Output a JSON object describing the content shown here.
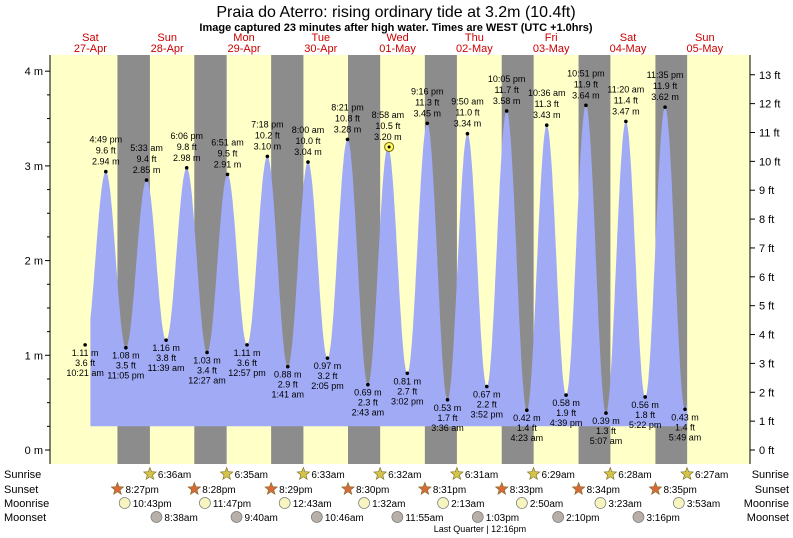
{
  "page": {
    "title": "Praia do Aterro: rising  ordinary tide at 3.2m (10.4ft)",
    "subtitle": "Image captured 23 minutes after high water. Times are WEST (UTC +1.0hrs)"
  },
  "chart_data": {
    "type": "area",
    "title": "Praia do Aterro: rising  ordinary tide at 3.2m (10.4ft)",
    "subtitle": "Image captured 23 minutes after high water. Times are WEST (UTC +1.0hrs)",
    "x_unit": "days from Sat 27-Apr 00:00 (WEST)",
    "ylim_m": [
      0,
      4.2
    ],
    "ylim_ft": [
      0,
      13.78
    ],
    "y_ticks_m": [
      "0 m",
      "1 m",
      "2 m",
      "3 m",
      "4 m"
    ],
    "y_ticks_ft": [
      "0 ft",
      "1 ft",
      "2 ft",
      "3 ft",
      "4 ft",
      "5 ft",
      "6 ft",
      "7 ft",
      "8 ft",
      "9 ft",
      "10 ft",
      "11 ft",
      "12 ft",
      "13 ft"
    ],
    "days": [
      {
        "weekday": "Sat",
        "date": "27-Apr"
      },
      {
        "weekday": "Sun",
        "date": "28-Apr"
      },
      {
        "weekday": "Mon",
        "date": "29-Apr"
      },
      {
        "weekday": "Tue",
        "date": "30-Apr"
      },
      {
        "weekday": "Wed",
        "date": "01-May"
      },
      {
        "weekday": "Thu",
        "date": "02-May"
      },
      {
        "weekday": "Fri",
        "date": "03-May"
      },
      {
        "weekday": "Sat",
        "date": "04-May"
      },
      {
        "weekday": "Sun",
        "date": "05-May"
      }
    ],
    "tides": [
      {
        "type": "low",
        "t": 0.4313,
        "m": 1.11,
        "time": "10:21 am",
        "m_label": "1.11 m",
        "ft_label": "3.6 ft"
      },
      {
        "type": "high",
        "t": 0.7007,
        "m": 2.94,
        "time": "4:49 pm",
        "m_label": "2.94 m",
        "ft_label": "9.6 ft"
      },
      {
        "type": "low",
        "t": 0.9618,
        "m": 1.08,
        "time": "11:05 pm",
        "m_label": "1.08 m",
        "ft_label": "3.5 ft"
      },
      {
        "type": "high",
        "t": 1.2313,
        "m": 2.85,
        "time": "5:33 am",
        "m_label": "2.85 m",
        "ft_label": "9.4 ft"
      },
      {
        "type": "low",
        "t": 1.4854,
        "m": 1.16,
        "time": "11:39 am",
        "m_label": "1.16 m",
        "ft_label": "3.8 ft"
      },
      {
        "type": "high",
        "t": 1.7542,
        "m": 2.98,
        "time": "6:06 pm",
        "m_label": "2.98 m",
        "ft_label": "9.8 ft"
      },
      {
        "type": "low",
        "t": 2.0188,
        "m": 1.03,
        "time": "12:27 am",
        "m_label": "1.03 m",
        "ft_label": "3.4 ft"
      },
      {
        "type": "high",
        "t": 2.2854,
        "m": 2.91,
        "time": "6:51 am",
        "m_label": "2.91 m",
        "ft_label": "9.5 ft"
      },
      {
        "type": "low",
        "t": 2.5396,
        "m": 1.11,
        "time": "12:57 pm",
        "m_label": "1.11 m",
        "ft_label": "3.6 ft"
      },
      {
        "type": "high",
        "t": 2.8042,
        "m": 3.1,
        "time": "7:18 pm",
        "m_label": "3.10 m",
        "ft_label": "10.2 ft"
      },
      {
        "type": "low",
        "t": 3.0701,
        "m": 0.88,
        "time": "1:41 am",
        "m_label": "0.88 m",
        "ft_label": "2.9 ft"
      },
      {
        "type": "high",
        "t": 3.3333,
        "m": 3.04,
        "time": "8:00 am",
        "m_label": "3.04 m",
        "ft_label": "10.0 ft"
      },
      {
        "type": "low",
        "t": 3.5868,
        "m": 0.97,
        "time": "2:05 pm",
        "m_label": "0.97 m",
        "ft_label": "3.2 ft"
      },
      {
        "type": "high",
        "t": 3.8479,
        "m": 3.28,
        "time": "8:21 pm",
        "m_label": "3.28 m",
        "ft_label": "10.8 ft"
      },
      {
        "type": "low",
        "t": 4.1132,
        "m": 0.69,
        "time": "2:43 am",
        "m_label": "0.69 m",
        "ft_label": "2.3 ft"
      },
      {
        "type": "high",
        "t": 4.3736,
        "m": 3.2,
        "time": "8:58 am",
        "m_label": "3.20 m",
        "ft_label": "10.5 ft"
      },
      {
        "type": "low",
        "t": 4.6264,
        "m": 0.81,
        "time": "3:02 pm",
        "m_label": "0.81 m",
        "ft_label": "2.7 ft"
      },
      {
        "type": "high",
        "t": 4.8861,
        "m": 3.45,
        "time": "9:16 pm",
        "m_label": "3.45 m",
        "ft_label": "11.3 ft"
      },
      {
        "type": "low",
        "t": 5.15,
        "m": 0.53,
        "time": "3:36 am",
        "m_label": "0.53 m",
        "ft_label": "1.7 ft"
      },
      {
        "type": "high",
        "t": 5.4097,
        "m": 3.34,
        "time": "9:50 am",
        "m_label": "3.34 m",
        "ft_label": "11.0 ft"
      },
      {
        "type": "low",
        "t": 5.6611,
        "m": 0.67,
        "time": "3:52 pm",
        "m_label": "0.67 m",
        "ft_label": "2.2 ft"
      },
      {
        "type": "high",
        "t": 5.9201,
        "m": 3.58,
        "time": "10:05 pm",
        "m_label": "3.58 m",
        "ft_label": "11.7 ft"
      },
      {
        "type": "low",
        "t": 6.1826,
        "m": 0.42,
        "time": "4:23 am",
        "m_label": "0.42 m",
        "ft_label": "1.4 ft"
      },
      {
        "type": "high",
        "t": 6.4417,
        "m": 3.43,
        "time": "10:36 am",
        "m_label": "3.43 m",
        "ft_label": "11.3 ft"
      },
      {
        "type": "low",
        "t": 6.6937,
        "m": 0.58,
        "time": "4:39 pm",
        "m_label": "0.58 m",
        "ft_label": "1.9 ft"
      },
      {
        "type": "high",
        "t": 6.9521,
        "m": 3.64,
        "time": "10:51 pm",
        "m_label": "3.64 m",
        "ft_label": "11.9 ft"
      },
      {
        "type": "low",
        "t": 7.2132,
        "m": 0.39,
        "time": "5:07 am",
        "m_label": "0.39 m",
        "ft_label": "1.3 ft"
      },
      {
        "type": "high",
        "t": 7.4722,
        "m": 3.47,
        "time": "11:20 am",
        "m_label": "3.47 m",
        "ft_label": "11.4 ft"
      },
      {
        "type": "low",
        "t": 7.7236,
        "m": 0.56,
        "time": "5:22 pm",
        "m_label": "0.56 m",
        "ft_label": "1.8 ft"
      },
      {
        "type": "high",
        "t": 7.9826,
        "m": 3.62,
        "time": "11:35 pm",
        "m_label": "3.62 m",
        "ft_label": "11.9 ft"
      },
      {
        "type": "low",
        "t": 8.2424,
        "m": 0.43,
        "time": "5:49 am",
        "m_label": "0.43 m",
        "ft_label": "1.4 ft"
      }
    ],
    "current": {
      "t": 4.3896,
      "m": 3.2
    },
    "night": {
      "sunset_day0": 0.8521,
      "sunset_step": 0.0007,
      "sunrise_day1": 1.275,
      "sunrise_step": -0.0007
    },
    "events": {
      "sunrise": [
        {
          "t": 1.275,
          "label": "6:36am"
        },
        {
          "t": 2.2743,
          "label": "6:35am"
        },
        {
          "t": 3.2729,
          "label": "6:33am"
        },
        {
          "t": 4.2722,
          "label": "6:32am"
        },
        {
          "t": 5.2715,
          "label": "6:31am"
        },
        {
          "t": 6.2701,
          "label": "6:29am"
        },
        {
          "t": 7.2694,
          "label": "6:28am"
        },
        {
          "t": 8.2688,
          "label": "6:27am"
        }
      ],
      "sunset": [
        {
          "t": 0.8521,
          "label": "8:27pm"
        },
        {
          "t": 1.8528,
          "label": "8:28pm"
        },
        {
          "t": 2.8535,
          "label": "8:29pm"
        },
        {
          "t": 3.8542,
          "label": "8:30pm"
        },
        {
          "t": 4.8549,
          "label": "8:31pm"
        },
        {
          "t": 5.8563,
          "label": "8:33pm"
        },
        {
          "t": 6.8569,
          "label": "8:34pm"
        },
        {
          "t": 7.8576,
          "label": "8:35pm"
        }
      ],
      "moonrise": [
        {
          "t": 0.9465,
          "label": "10:43pm"
        },
        {
          "t": 1.991,
          "label": "11:47pm"
        },
        {
          "t": 3.0299,
          "label": "12:43am"
        },
        {
          "t": 4.0639,
          "label": "1:32am"
        },
        {
          "t": 5.0924,
          "label": "2:13am"
        },
        {
          "t": 6.1181,
          "label": "2:50am"
        },
        {
          "t": 7.141,
          "label": "3:23am"
        },
        {
          "t": 8.1618,
          "label": "3:53am"
        }
      ],
      "moonset": [
        {
          "t": 1.3597,
          "label": "8:38am"
        },
        {
          "t": 2.4028,
          "label": "9:40am"
        },
        {
          "t": 3.4486,
          "label": "10:46am"
        },
        {
          "t": 4.4965,
          "label": "11:55am"
        },
        {
          "t": 5.5438,
          "label": "1:03pm"
        },
        {
          "t": 6.5903,
          "label": "2:10pm"
        },
        {
          "t": 7.6361,
          "label": "3:16pm"
        }
      ]
    },
    "row_labels": {
      "sunrise": "Sunrise",
      "sunset": "Sunset",
      "moonrise": "Moonrise",
      "moonset": "Moonset"
    },
    "footer": "Last Quarter | 12:16pm",
    "colors": {
      "day_bg": "#ffffc8",
      "night_bg": "#8c8c8c",
      "tide_fill": "#a0aaf5",
      "label_red": "#cc0000",
      "sun_star": "#d4c44a",
      "sunset_star": "#d86a3a",
      "moon_rise": "#f8f4c0",
      "moon_set": "#b8b0a8"
    }
  }
}
